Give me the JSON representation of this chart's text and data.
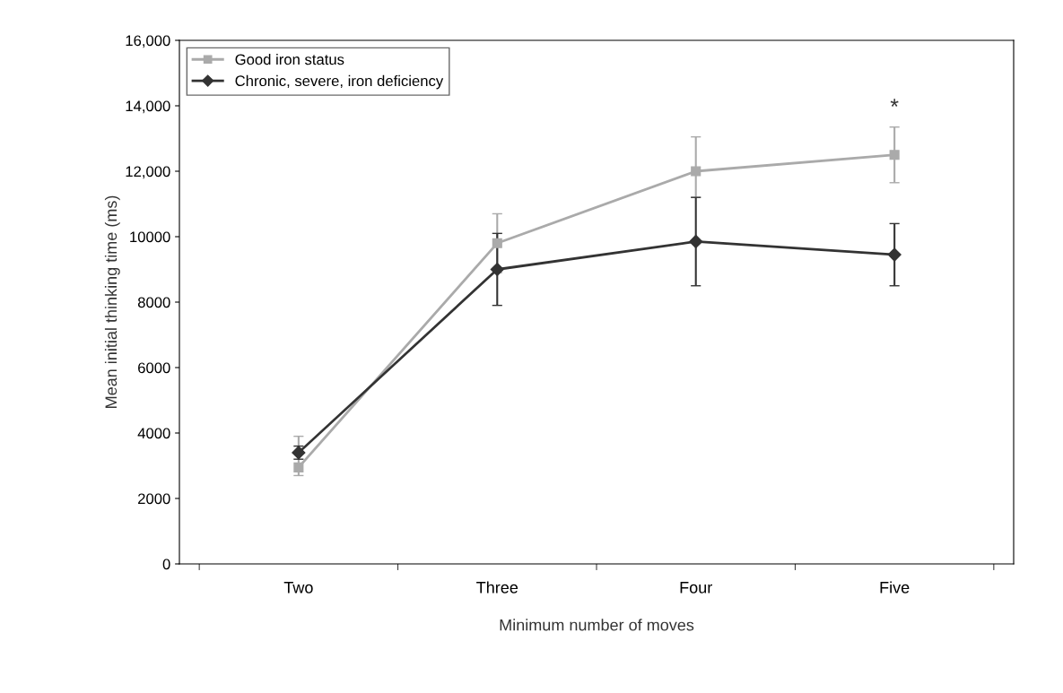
{
  "chart_data": {
    "type": "line",
    "xlabel": "Minimum number of moves",
    "ylabel": "Mean initial thinking time (ms)",
    "categories": [
      "Two",
      "Three",
      "Four",
      "Five"
    ],
    "series": [
      {
        "name": "Good iron status",
        "color": "#aaaaaa",
        "marker": "square",
        "values": [
          2950,
          9800,
          12000,
          12500
        ],
        "errors": [
          [
            2700,
            3900
          ],
          [
            8900,
            10700
          ],
          [
            11200,
            13050
          ],
          [
            11650,
            13350
          ]
        ]
      },
      {
        "name": "Chronic, severe, iron deficiency",
        "color": "#333333",
        "marker": "diamond",
        "values": [
          3400,
          9000,
          9850,
          9450
        ],
        "errors": [
          [
            3200,
            3600
          ],
          [
            7900,
            10100
          ],
          [
            8500,
            11200
          ],
          [
            8500,
            10400
          ]
        ]
      }
    ],
    "ylim": [
      0,
      16000
    ],
    "yticks": [
      0,
      2000,
      4000,
      6000,
      8000,
      10000,
      {
        "value": 12000,
        "label": "12,000"
      },
      {
        "value": 14000,
        "label": "14,000"
      },
      {
        "value": 16000,
        "label": "16,000"
      }
    ],
    "annotations": [
      "*"
    ],
    "legend": "top left",
    "grid": false,
    "line_style": "solid"
  }
}
